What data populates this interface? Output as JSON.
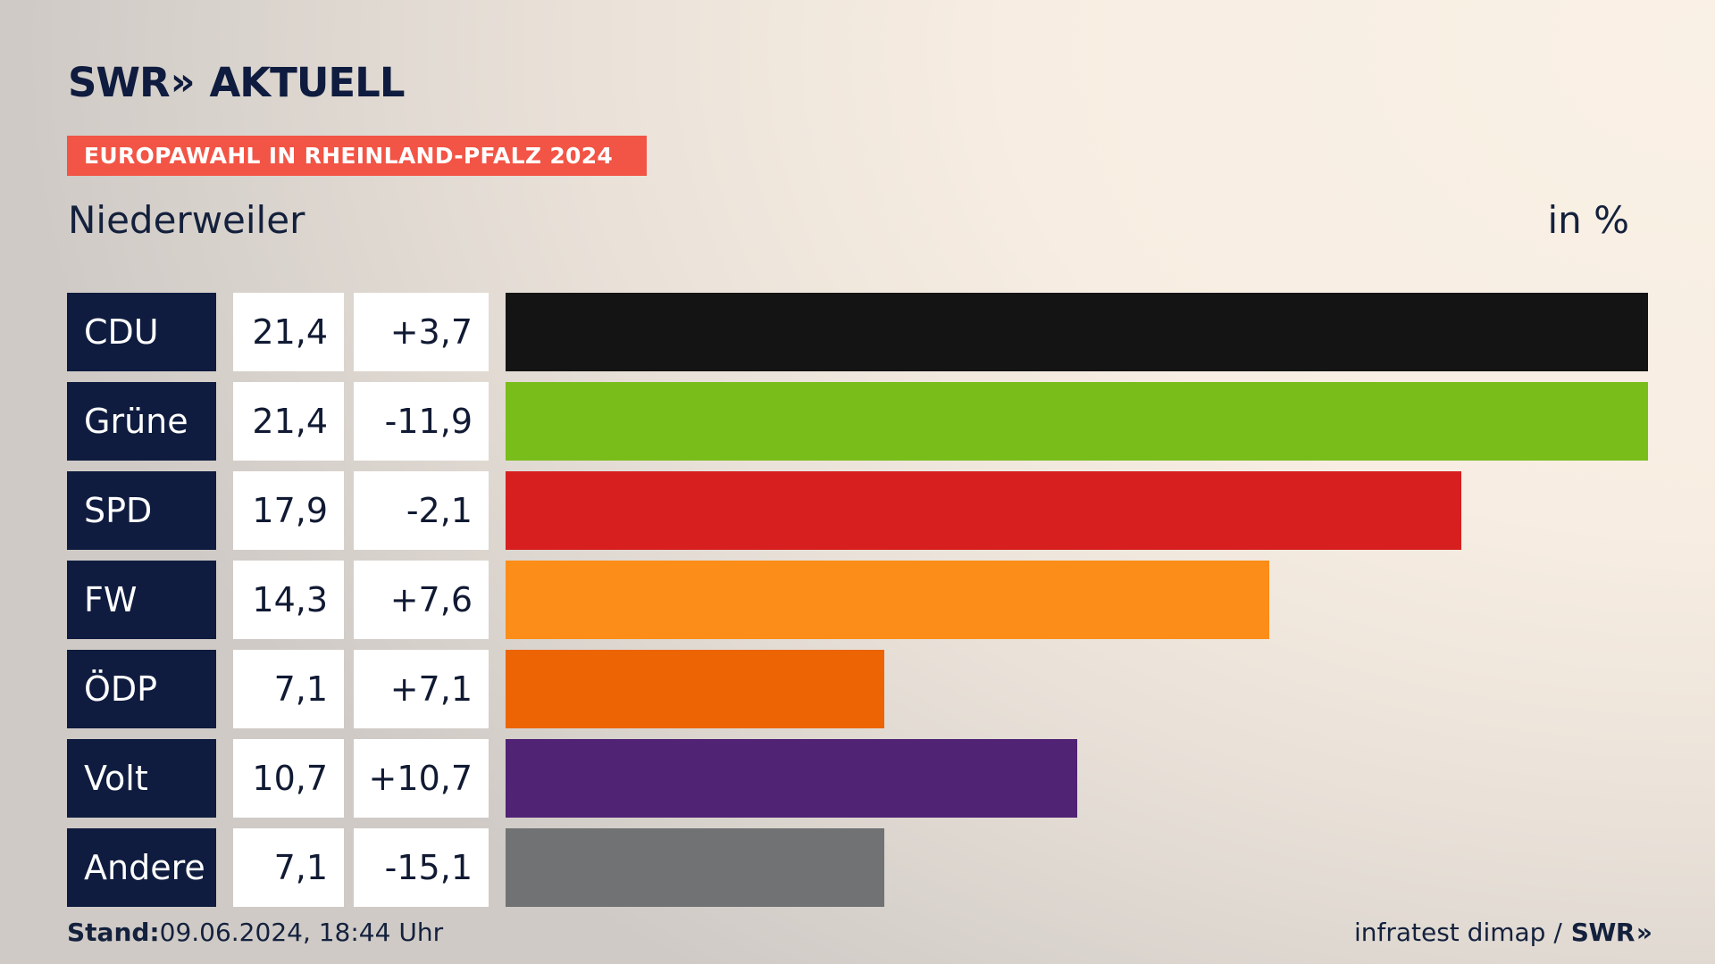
{
  "brand": {
    "logo_left": "SWR",
    "logo_chevrons": "»",
    "logo_right": "AKTUELL"
  },
  "tag": "EUROPAWAHL IN RHEINLAND-PFALZ 2024",
  "place": "Niederweiler",
  "unit": "in %",
  "chart_data": {
    "type": "bar",
    "orientation": "horizontal",
    "title": "Niederweiler",
    "unit": "in %",
    "categories": [
      "CDU",
      "Grüne",
      "SPD",
      "FW",
      "ÖDP",
      "Volt",
      "Andere"
    ],
    "series": [
      {
        "name": "",
        "values": [
          21.4,
          21.4,
          17.9,
          14.3,
          7.1,
          10.7,
          7.1
        ]
      }
    ],
    "rows": [
      {
        "party": "CDU",
        "share": "21,4",
        "diff": "+3,7",
        "value": 21.4,
        "color": "#141414"
      },
      {
        "party": "Grüne",
        "share": "21,4",
        "diff": "-11,9",
        "value": 21.4,
        "color": "#79bd1b"
      },
      {
        "party": "SPD",
        "share": "17,9",
        "diff": "-2,1",
        "value": 17.9,
        "color": "#d71f20"
      },
      {
        "party": "FW",
        "share": "14,3",
        "diff": "+7,6",
        "value": 14.3,
        "color": "#fb8d18"
      },
      {
        "party": "ÖDP",
        "share": "7,1",
        "diff": "+7,1",
        "value": 7.1,
        "color": "#ec6403"
      },
      {
        "party": "Volt",
        "share": "10,7",
        "diff": "+10,7",
        "value": 10.7,
        "color": "#502375"
      },
      {
        "party": "Andere",
        "share": "7,1",
        "diff": "-15,1",
        "value": 7.1,
        "color": "#717274"
      }
    ],
    "xlim": [
      0,
      21.4
    ],
    "grid": false,
    "legend": "none"
  },
  "footer": {
    "stand_label": "Stand:",
    "stand_value": "09.06.2024, 18:44 Uhr",
    "source": "infratest dimap /",
    "source_brand": "SWR",
    "source_chevrons": "»"
  },
  "colors": {
    "navy": "#0f1c3f",
    "tag_red": "#f25445"
  }
}
